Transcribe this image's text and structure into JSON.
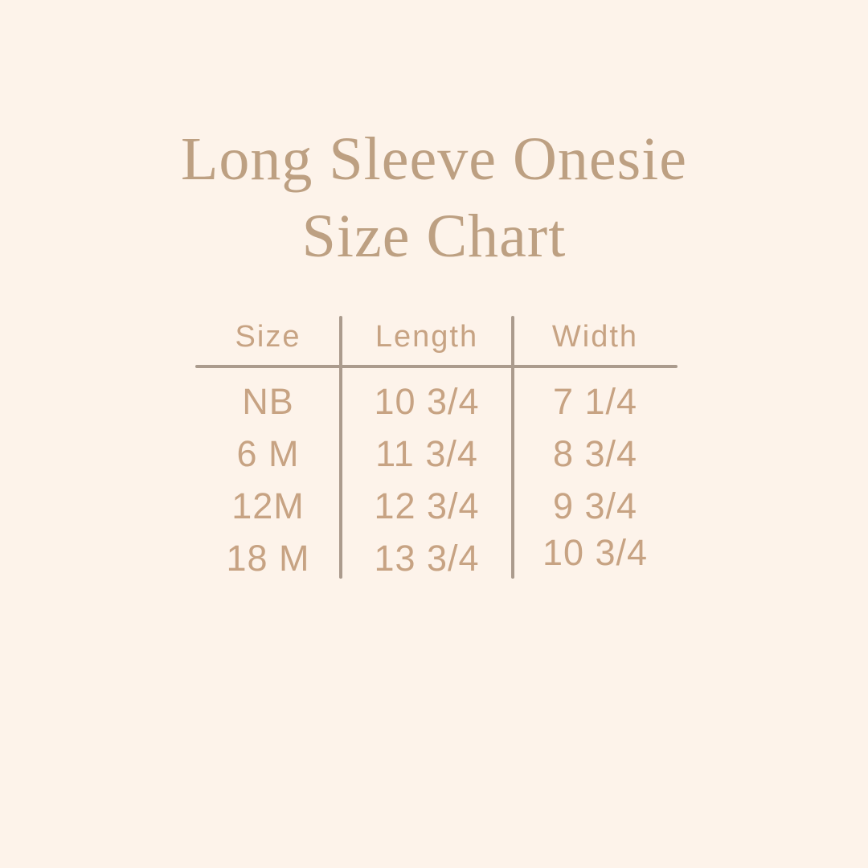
{
  "title": {
    "line1": "Long Sleeve Onesie",
    "line2": "Size Chart"
  },
  "chart_data": {
    "type": "table",
    "title": "Long Sleeve Onesie Size Chart",
    "columns": [
      "Size",
      "Length",
      "Width"
    ],
    "rows": [
      {
        "size": "NB",
        "length": "10 3/4",
        "width": "7 1/4"
      },
      {
        "size": "6 M",
        "length": "11 3/4",
        "width": "8 3/4"
      },
      {
        "size": "12M",
        "length": "12 3/4",
        "width": "9 3/4"
      },
      {
        "size": "18 M",
        "length": "13 3/4",
        "width": "10 3/4"
      }
    ],
    "layout_hints": {
      "header_divider": true,
      "column_dividers": true,
      "alignment": "center"
    }
  },
  "colors": {
    "bg": "#fdf3ea",
    "title-color": "#bda082",
    "text-color": "#c7a383",
    "line-color": "#ab9b8d"
  }
}
